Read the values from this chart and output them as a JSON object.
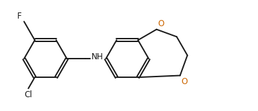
{
  "background_color": "#ffffff",
  "bond_color": "#1a1a1a",
  "atom_colors": {
    "F": "#1a1a1a",
    "Cl": "#1a1a1a",
    "N": "#1a1a1a",
    "O": "#cc6600",
    "H": "#1a1a1a"
  },
  "figsize": [
    3.75,
    1.61
  ],
  "dpi": 100
}
